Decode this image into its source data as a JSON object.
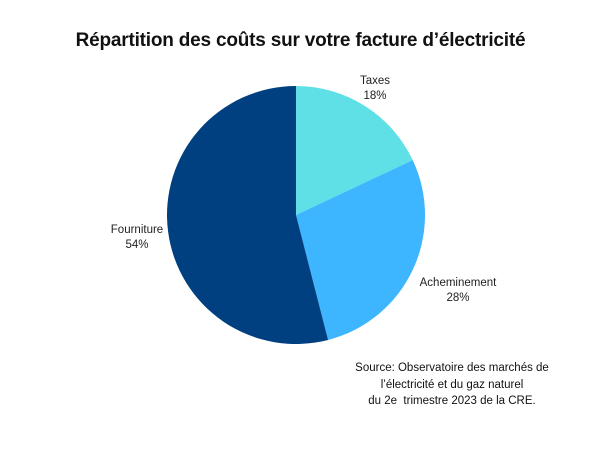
{
  "chart_data": {
    "type": "pie",
    "title": "Répartition des coûts sur votre facture d’électricité",
    "categories": [
      "Taxes",
      "Acheminement",
      "Fourniture"
    ],
    "values": [
      18,
      28,
      54
    ],
    "value_labels": [
      "18%",
      "28%",
      "54%"
    ],
    "colors": [
      "#5fe0e6",
      "#3db5ff",
      "#003f80"
    ]
  },
  "source": {
    "lines": [
      "Source: Observatoire des marchés de",
      "l’électricité et du gaz naturel",
      "du 2e  trimestre 2023 de la CRE."
    ]
  }
}
